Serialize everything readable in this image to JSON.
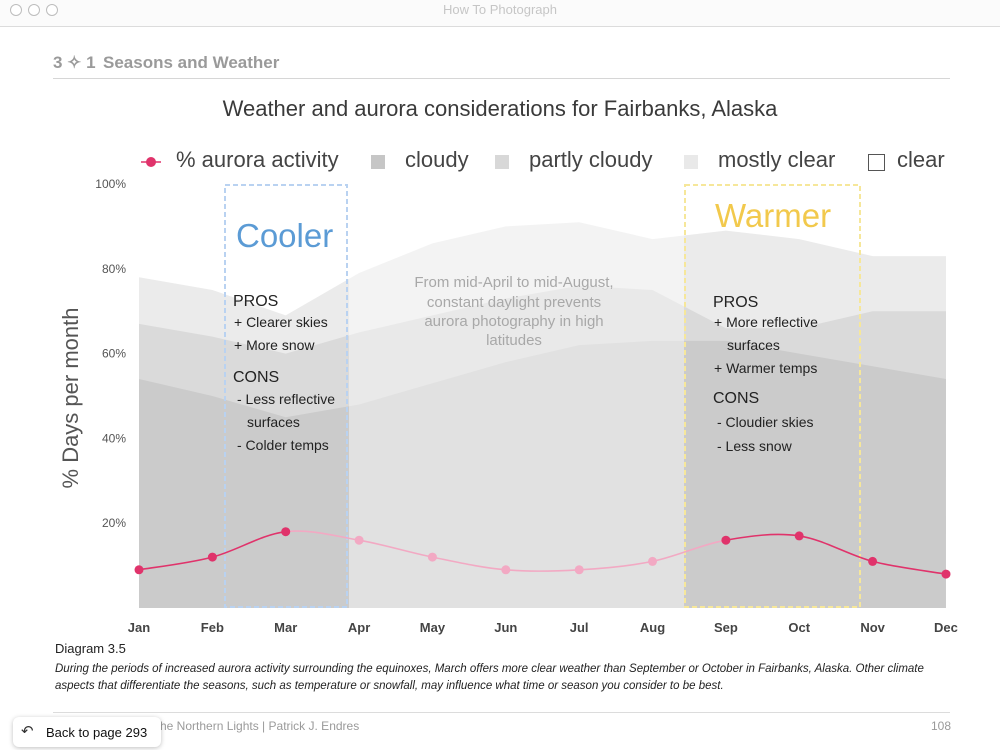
{
  "window": {
    "title": "How To Photograph"
  },
  "section": {
    "number": "3 ✧ 1",
    "title": "Seasons and Weather"
  },
  "colors": {
    "aurora": "#e0336b",
    "aurora_faded": "#f2a9c3",
    "cloudy": "#cbcbcb",
    "partly_cloudy": "#dadada",
    "mostly_clear": "#ebebeb",
    "clear": "#ffffff",
    "cooler": "#5b9bd5",
    "warmer": "#f2c94c"
  },
  "chart_data": {
    "type": "area",
    "title": "Weather and aurora considerations for Fairbanks, Alaska",
    "xlabel": "",
    "ylabel": "% Days per month",
    "ylim": [
      0,
      100
    ],
    "y_ticks": [
      "20%",
      "40%",
      "60%",
      "80%",
      "100%"
    ],
    "categories": [
      "Jan",
      "Feb",
      "Mar",
      "Apr",
      "May",
      "Jun",
      "Jul",
      "Aug",
      "Sep",
      "Oct",
      "Nov",
      "Dec"
    ],
    "grid": false,
    "legend_position": "top",
    "series": [
      {
        "name": "cloudy",
        "kind": "stacked_area",
        "values": [
          54,
          50,
          45,
          48,
          53,
          58,
          62,
          63,
          63,
          60,
          57,
          54
        ]
      },
      {
        "name": "partly cloudy",
        "kind": "stacked_area",
        "values": [
          13,
          14,
          15,
          17,
          16,
          15,
          14,
          12,
          3,
          6,
          13,
          16
        ]
      },
      {
        "name": "mostly clear",
        "kind": "stacked_area",
        "values": [
          11,
          11,
          9,
          14,
          17,
          17,
          15,
          12,
          23,
          21,
          13,
          13
        ]
      },
      {
        "name": "clear",
        "kind": "stacked_area",
        "values": [
          22,
          25,
          31,
          21,
          14,
          10,
          9,
          13,
          11,
          13,
          17,
          17
        ]
      },
      {
        "name": "% aurora activity",
        "kind": "line",
        "values": [
          9,
          12,
          18,
          16,
          12,
          9,
          9,
          11,
          16,
          17,
          11,
          8
        ]
      }
    ],
    "annotations": {
      "cooler": {
        "heading": "Cooler",
        "pros_label": "PROS",
        "pros": [
          "+ Clearer skies",
          "+ More snow"
        ],
        "cons_label": "CONS",
        "cons": [
          "- Less reflective",
          "surfaces",
          "- Colder temps"
        ]
      },
      "warmer": {
        "heading": "Warmer",
        "pros_label": "PROS",
        "pros": [
          "+ More reflective",
          "surfaces",
          "+ Warmer temps"
        ],
        "cons_label": "CONS",
        "cons": [
          "- Cloudier skies",
          "- Less snow"
        ]
      },
      "daylight_note": [
        "From mid-April to mid-August,",
        "constant daylight prevents",
        "aurora photography in high",
        "latitudes"
      ]
    }
  },
  "caption": {
    "title": "Diagram 3.5",
    "body": "During the periods of increased aurora activity surrounding the equinoxes, March offers more clear weather than September or October in Fairbanks, Alaska. Other climate aspects that differentiate the seasons, such as temperature or snowfall, may influence what time or season you consider to be best."
  },
  "footer": {
    "left": "he Northern Lights  |  Patrick J. Endres",
    "page": "108"
  },
  "back_button": {
    "label": "Back to page 293",
    "icon": "back-arrow-icon"
  }
}
